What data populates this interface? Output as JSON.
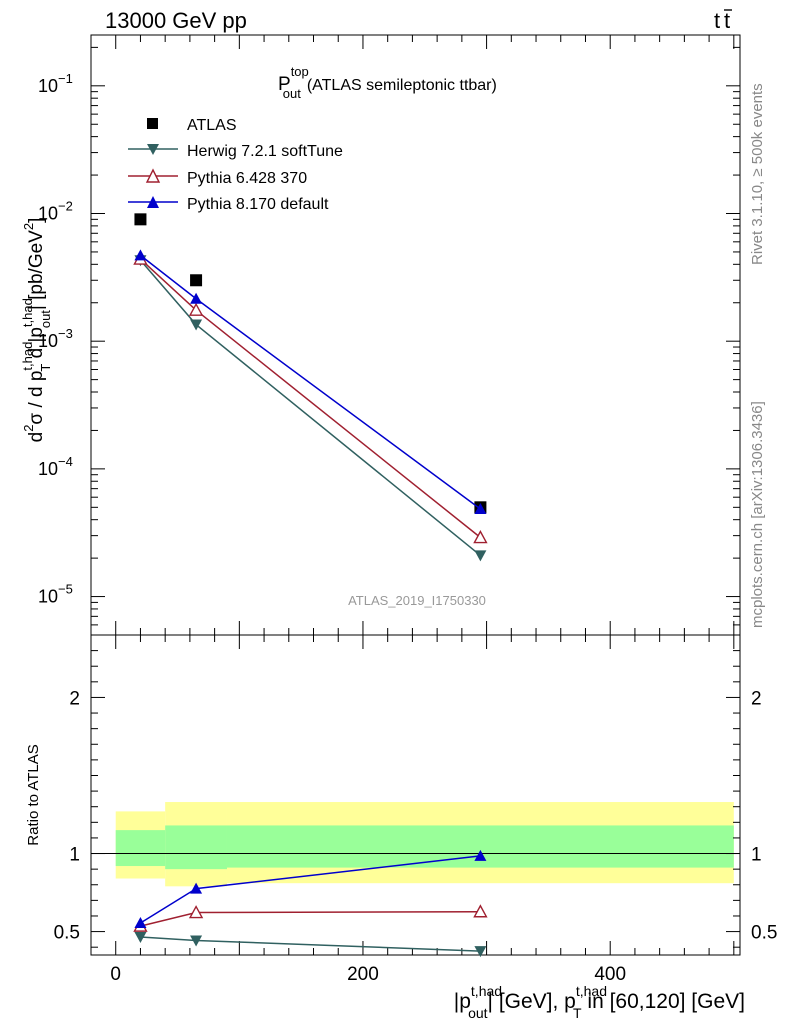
{
  "header": {
    "energy": "13000 GeV pp",
    "process_t": "t",
    "process_tbar": "t"
  },
  "side": {
    "rivet": "Rivet 3.1.10, ≥ 500k events",
    "mcplots": "mcplots.cern.ch [arXiv:1306.3436]"
  },
  "chart_data": [
    {
      "type": "line",
      "panel": "main",
      "title_main": "P",
      "title_sup": "top",
      "title_sub": "out",
      "title_rest": "(ATLAS semileptonic ttbar)",
      "analysis_label": "ATLAS_2019_I1750330",
      "yscale": "log",
      "ylim": [
        5e-06,
        0.25
      ],
      "xlim": [
        -20,
        505
      ],
      "ylabel": {
        "a": "d",
        "a_sup": "2",
        "b": "σ / d p",
        "b_sup": "t,had",
        "b_sub": "T",
        "c": " d |p",
        "c_sup": "t,had",
        "c_sub": "out",
        "d": "| [pb/GeV",
        "d_sup": "2",
        "e": "]"
      },
      "yticks": [
        {
          "value": 1e-05,
          "base": "10",
          "exp": "−5"
        },
        {
          "value": 0.0001,
          "base": "10",
          "exp": "−4"
        },
        {
          "value": 0.001,
          "base": "10",
          "exp": "−3"
        },
        {
          "value": 0.01,
          "base": "10",
          "exp": "−2"
        },
        {
          "value": 0.1,
          "base": "10",
          "exp": "−1"
        }
      ],
      "series": [
        {
          "name": "ATLAS",
          "color": "#000000",
          "marker": "square",
          "x": [
            20,
            65,
            295
          ],
          "values": [
            0.009,
            0.003,
            5e-05
          ]
        },
        {
          "name": "Herwig 7.2.1 softTune",
          "color": "#306060",
          "marker": "triangle-down",
          "x": [
            20,
            65,
            295
          ],
          "values": [
            0.0043,
            0.00135,
            2.1e-05
          ]
        },
        {
          "name": "Pythia 6.428 370",
          "color": "#a02030",
          "marker": "triangle-up-open",
          "x": [
            20,
            65,
            295
          ],
          "values": [
            0.0044,
            0.00175,
            2.9e-05
          ]
        },
        {
          "name": "Pythia 8.170 default",
          "color": "#0000cc",
          "marker": "triangle-up",
          "x": [
            20,
            65,
            295
          ],
          "values": [
            0.0047,
            0.00215,
            4.85e-05
          ]
        }
      ]
    },
    {
      "type": "line",
      "panel": "ratio",
      "ylabel": "Ratio to ATLAS",
      "xlim": [
        -20,
        505
      ],
      "ylim": [
        0.35,
        2.4
      ],
      "yticks": [
        0.5,
        1,
        2
      ],
      "yticklabels": [
        "0.5",
        "1",
        "2"
      ],
      "xticks": [
        0,
        200,
        400
      ],
      "xticklabels": [
        "0",
        "200",
        "400"
      ],
      "xlabel": {
        "a": "|p",
        "a_sup": "t,had",
        "a_sub": "out",
        "b": "| [GeV], p",
        "b_sup": "t,had",
        "b_sub": "T",
        "c": " in [60,120] [GeV]"
      },
      "reference": 1,
      "bands": [
        {
          "x": [
            0,
            40
          ],
          "yellow": [
            0.84,
            1.27
          ],
          "green": [
            0.92,
            1.15
          ]
        },
        {
          "x": [
            40,
            90
          ],
          "yellow": [
            0.79,
            1.33
          ],
          "green": [
            0.9,
            1.18
          ]
        },
        {
          "x": [
            90,
            500
          ],
          "yellow": [
            0.81,
            1.33
          ],
          "green": [
            0.91,
            1.18
          ]
        }
      ],
      "series": [
        {
          "name": "Herwig 7.2.1 softTune",
          "color": "#306060",
          "marker": "triangle-down",
          "x": [
            20,
            65,
            295
          ],
          "values": [
            0.465,
            0.443,
            0.375
          ]
        },
        {
          "name": "Pythia 6.428 370",
          "color": "#a02030",
          "marker": "triangle-up-open",
          "x": [
            20,
            65,
            295
          ],
          "values": [
            0.535,
            0.622,
            0.627
          ]
        },
        {
          "name": "Pythia 8.170 default",
          "color": "#0000cc",
          "marker": "triangle-up",
          "x": [
            20,
            65,
            295
          ],
          "values": [
            0.555,
            0.775,
            0.985
          ]
        }
      ]
    }
  ]
}
